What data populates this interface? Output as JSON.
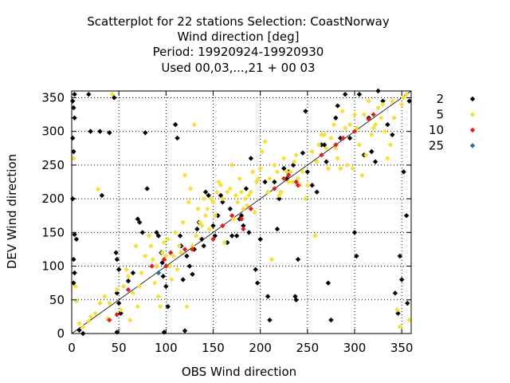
{
  "chart_data": {
    "type": "scatter",
    "title_lines": [
      "Scatterplot for   22 stations Selection: CoastNorway",
      "Wind direction [deg]",
      "Period: 19920924-19920930",
      "Used  00,03,...,21  + 00 03"
    ],
    "xlabel": "OBS Wind direction",
    "ylabel": "DEV Wind direction",
    "xlim": [
      0,
      360
    ],
    "ylim": [
      0,
      360
    ],
    "xticks": [
      0,
      50,
      100,
      150,
      200,
      250,
      300,
      350
    ],
    "yticks": [
      0,
      50,
      100,
      150,
      200,
      250,
      300,
      350
    ],
    "grid": true,
    "diagonal_line": true,
    "legend_position": "right",
    "series": [
      {
        "name": "2",
        "color": "#000000",
        "points": [
          [
            1,
            345
          ],
          [
            2,
            335
          ],
          [
            3,
            320
          ],
          [
            1,
            290
          ],
          [
            2,
            270
          ],
          [
            1,
            200
          ],
          [
            3,
            147
          ],
          [
            5,
            140
          ],
          [
            2,
            110
          ],
          [
            3,
            90
          ],
          [
            2,
            75
          ],
          [
            8,
            5
          ],
          [
            12,
            0
          ],
          [
            3,
            355
          ],
          [
            18,
            355
          ],
          [
            20,
            300
          ],
          [
            30,
            300
          ],
          [
            32,
            205
          ],
          [
            40,
            298
          ],
          [
            45,
            350
          ],
          [
            47,
            120
          ],
          [
            48,
            110
          ],
          [
            50,
            95
          ],
          [
            48,
            60
          ],
          [
            50,
            45
          ],
          [
            52,
            30
          ],
          [
            48,
            2
          ],
          [
            60,
            78
          ],
          [
            65,
            90
          ],
          [
            70,
            170
          ],
          [
            72,
            165
          ],
          [
            75,
            150
          ],
          [
            78,
            298
          ],
          [
            80,
            215
          ],
          [
            90,
            100
          ],
          [
            90,
            150
          ],
          [
            92,
            145
          ],
          [
            95,
            120
          ],
          [
            96,
            105
          ],
          [
            97,
            85
          ],
          [
            98,
            2
          ],
          [
            100,
            70
          ],
          [
            102,
            40
          ],
          [
            110,
            310
          ],
          [
            112,
            290
          ],
          [
            115,
            145
          ],
          [
            116,
            130
          ],
          [
            118,
            80
          ],
          [
            120,
            4
          ],
          [
            122,
            115
          ],
          [
            125,
            100
          ],
          [
            128,
            88
          ],
          [
            130,
            125
          ],
          [
            133,
            155
          ],
          [
            135,
            165
          ],
          [
            138,
            140
          ],
          [
            140,
            130
          ],
          [
            142,
            210
          ],
          [
            145,
            205
          ],
          [
            150,
            160
          ],
          [
            152,
            145
          ],
          [
            155,
            175
          ],
          [
            158,
            205
          ],
          [
            160,
            195
          ],
          [
            165,
            135
          ],
          [
            168,
            185
          ],
          [
            170,
            145
          ],
          [
            175,
            145
          ],
          [
            178,
            170
          ],
          [
            180,
            175
          ],
          [
            182,
            160
          ],
          [
            185,
            215
          ],
          [
            188,
            150
          ],
          [
            190,
            260
          ],
          [
            195,
            95
          ],
          [
            197,
            75
          ],
          [
            200,
            140
          ],
          [
            205,
            225
          ],
          [
            208,
            55
          ],
          [
            210,
            20
          ],
          [
            215,
            225
          ],
          [
            218,
            155
          ],
          [
            220,
            200
          ],
          [
            225,
            245
          ],
          [
            228,
            230
          ],
          [
            230,
            240
          ],
          [
            235,
            250
          ],
          [
            237,
            55
          ],
          [
            238,
            50
          ],
          [
            240,
            110
          ],
          [
            245,
            268
          ],
          [
            248,
            330
          ],
          [
            250,
            240
          ],
          [
            255,
            220
          ],
          [
            260,
            210
          ],
          [
            265,
            280
          ],
          [
            268,
            280
          ],
          [
            270,
            255
          ],
          [
            272,
            75
          ],
          [
            275,
            20
          ],
          [
            280,
            320
          ],
          [
            282,
            338
          ],
          [
            285,
            290
          ],
          [
            290,
            355
          ],
          [
            295,
            290
          ],
          [
            300,
            150
          ],
          [
            302,
            115
          ],
          [
            305,
            355
          ],
          [
            310,
            265
          ],
          [
            315,
            320
          ],
          [
            318,
            270
          ],
          [
            322,
            255
          ],
          [
            325,
            360
          ],
          [
            330,
            345
          ],
          [
            335,
            310
          ],
          [
            340,
            295
          ],
          [
            343,
            60
          ],
          [
            346,
            30
          ],
          [
            348,
            115
          ],
          [
            350,
            80
          ],
          [
            352,
            240
          ],
          [
            355,
            175
          ],
          [
            356,
            45
          ],
          [
            358,
            345
          ]
        ]
      },
      {
        "name": "5",
        "color": "#f5e03a",
        "points": [
          [
            2,
            260
          ],
          [
            4,
            70
          ],
          [
            5,
            48
          ],
          [
            8,
            15
          ],
          [
            12,
            10
          ],
          [
            18,
            18
          ],
          [
            20,
            25
          ],
          [
            25,
            30
          ],
          [
            28,
            214
          ],
          [
            30,
            45
          ],
          [
            35,
            55
          ],
          [
            38,
            22
          ],
          [
            40,
            45
          ],
          [
            43,
            355
          ],
          [
            48,
            65
          ],
          [
            52,
            35
          ],
          [
            55,
            70
          ],
          [
            58,
            95
          ],
          [
            60,
            85
          ],
          [
            62,
            20
          ],
          [
            65,
            60
          ],
          [
            68,
            130
          ],
          [
            70,
            40
          ],
          [
            72,
            70
          ],
          [
            74,
            90
          ],
          [
            78,
            115
          ],
          [
            82,
            145
          ],
          [
            84,
            130
          ],
          [
            86,
            110
          ],
          [
            88,
            75
          ],
          [
            90,
            100
          ],
          [
            92,
            55
          ],
          [
            94,
            40
          ],
          [
            96,
            120
          ],
          [
            98,
            135
          ],
          [
            100,
            115
          ],
          [
            102,
            140
          ],
          [
            104,
            100
          ],
          [
            106,
            80
          ],
          [
            108,
            115
          ],
          [
            110,
            150
          ],
          [
            112,
            95
          ],
          [
            114,
            130
          ],
          [
            116,
            120
          ],
          [
            118,
            165
          ],
          [
            120,
            235
          ],
          [
            122,
            40
          ],
          [
            124,
            195
          ],
          [
            126,
            215
          ],
          [
            128,
            130
          ],
          [
            130,
            310
          ],
          [
            132,
            145
          ],
          [
            134,
            185
          ],
          [
            136,
            165
          ],
          [
            138,
            160
          ],
          [
            140,
            200
          ],
          [
            142,
            175
          ],
          [
            144,
            185
          ],
          [
            146,
            155
          ],
          [
            148,
            200
          ],
          [
            150,
            195
          ],
          [
            152,
            175
          ],
          [
            154,
            210
          ],
          [
            156,
            225
          ],
          [
            158,
            220
          ],
          [
            160,
            200
          ],
          [
            162,
            135
          ],
          [
            165,
            210
          ],
          [
            168,
            215
          ],
          [
            170,
            250
          ],
          [
            172,
            170
          ],
          [
            174,
            205
          ],
          [
            176,
            195
          ],
          [
            178,
            230
          ],
          [
            180,
            210
          ],
          [
            182,
            185
          ],
          [
            184,
            200
          ],
          [
            186,
            190
          ],
          [
            188,
            205
          ],
          [
            190,
            210
          ],
          [
            192,
            240
          ],
          [
            194,
            180
          ],
          [
            196,
            225
          ],
          [
            198,
            230
          ],
          [
            200,
            245
          ],
          [
            202,
            270
          ],
          [
            205,
            285
          ],
          [
            208,
            210
          ],
          [
            210,
            230
          ],
          [
            212,
            110
          ],
          [
            215,
            250
          ],
          [
            218,
            240
          ],
          [
            220,
            205
          ],
          [
            222,
            210
          ],
          [
            225,
            260
          ],
          [
            228,
            240
          ],
          [
            230,
            225
          ],
          [
            232,
            240
          ],
          [
            234,
            225
          ],
          [
            236,
            255
          ],
          [
            238,
            265
          ],
          [
            240,
            230
          ],
          [
            242,
            220
          ],
          [
            245,
            240
          ],
          [
            248,
            200
          ],
          [
            250,
            220
          ],
          [
            255,
            270
          ],
          [
            258,
            145
          ],
          [
            260,
            255
          ],
          [
            262,
            280
          ],
          [
            265,
            295
          ],
          [
            268,
            295
          ],
          [
            270,
            275
          ],
          [
            272,
            245
          ],
          [
            275,
            290
          ],
          [
            278,
            310
          ],
          [
            280,
            275
          ],
          [
            282,
            260
          ],
          [
            285,
            245
          ],
          [
            287,
            330
          ],
          [
            290,
            305
          ],
          [
            292,
            250
          ],
          [
            295,
            310
          ],
          [
            298,
            245
          ],
          [
            300,
            325
          ],
          [
            302,
            305
          ],
          [
            305,
            280
          ],
          [
            308,
            235
          ],
          [
            310,
            325
          ],
          [
            312,
            265
          ],
          [
            315,
            345
          ],
          [
            318,
            295
          ],
          [
            320,
            305
          ],
          [
            322,
            310
          ],
          [
            325,
            335
          ],
          [
            328,
            320
          ],
          [
            330,
            340
          ],
          [
            332,
            300
          ],
          [
            335,
            260
          ],
          [
            338,
            280
          ],
          [
            340,
            345
          ],
          [
            342,
            320
          ],
          [
            345,
            35
          ],
          [
            348,
            10
          ],
          [
            350,
            340
          ],
          [
            352,
            350
          ],
          [
            355,
            355
          ],
          [
            358,
            20
          ]
        ]
      },
      {
        "name": "10",
        "color": "#e02020",
        "points": [
          [
            40,
            20
          ],
          [
            48,
            28
          ],
          [
            60,
            65
          ],
          [
            85,
            100
          ],
          [
            98,
            110
          ],
          [
            100,
            100
          ],
          [
            105,
            120
          ],
          [
            120,
            125
          ],
          [
            128,
            125
          ],
          [
            150,
            140
          ],
          [
            160,
            160
          ],
          [
            170,
            175
          ],
          [
            180,
            170
          ],
          [
            182,
            155
          ],
          [
            190,
            185
          ],
          [
            215,
            215
          ],
          [
            225,
            230
          ],
          [
            230,
            235
          ],
          [
            238,
            225
          ],
          [
            240,
            220
          ],
          [
            265,
            265
          ],
          [
            280,
            280
          ],
          [
            288,
            290
          ],
          [
            300,
            300
          ],
          [
            315,
            318
          ],
          [
            320,
            325
          ]
        ]
      },
      {
        "name": "25",
        "color": "#1f6fb5",
        "points": [
          [
            92,
            90
          ]
        ]
      }
    ]
  }
}
